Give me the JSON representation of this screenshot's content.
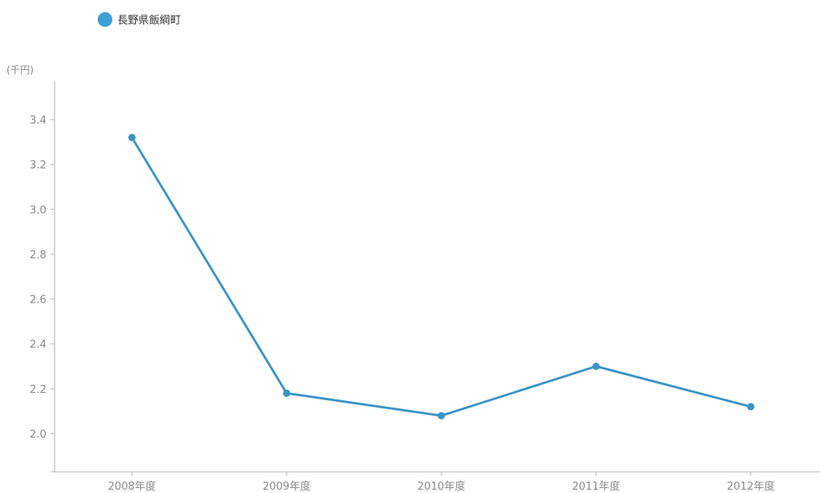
{
  "chart_data": {
    "type": "line",
    "title": "",
    "xlabel": "",
    "ylabel": "(千円)",
    "categories": [
      "2008年度",
      "2009年度",
      "2010年度",
      "2011年度",
      "2012年度"
    ],
    "series": [
      {
        "name": "長野県飯綱町",
        "values": [
          3.32,
          2.18,
          2.08,
          2.3,
          2.12
        ],
        "color": "#3d9fd3"
      }
    ],
    "ylim": [
      1.83,
      3.55
    ],
    "yticks": [
      2.0,
      2.2,
      2.4,
      2.6,
      2.8,
      3.0,
      3.2,
      3.4
    ],
    "ytick_labels": [
      "2.0",
      "2.2",
      "2.4",
      "2.6",
      "2.8",
      "3.0",
      "3.2",
      "3.4"
    ],
    "grid": false,
    "legend_position": "top-left"
  },
  "colors": {
    "axis": "#c8c8c8",
    "tick_text": "#8a8a8a",
    "series": "#3d9fd3",
    "line": "#3a94c4"
  }
}
